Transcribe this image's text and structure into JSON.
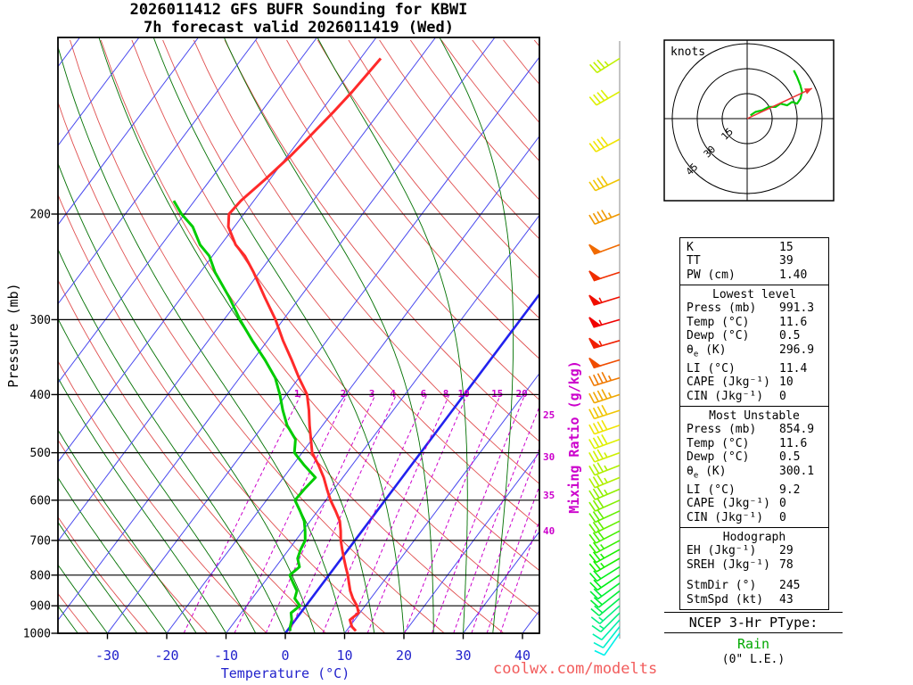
{
  "title": {
    "line1": "2026011412 GFS BUFR Sounding for KBWI",
    "line2": "7h forecast valid 2026011419 (Wed)"
  },
  "watermark": "coolwx.com/modelts",
  "skewt": {
    "xlabel": "Temperature (°C)",
    "ylabel": "Pressure (mb)",
    "mixing_label": "Mixing Ratio (g/kg)",
    "pressure_ticks": [
      200,
      300,
      400,
      500,
      600,
      700,
      800,
      900,
      1000
    ],
    "temp_ticks": [
      -30,
      -20,
      -10,
      0,
      10,
      20,
      30,
      40
    ],
    "mixing_ratios_top": [
      1,
      2,
      3,
      4,
      6,
      8,
      10,
      15,
      20
    ],
    "mixing_ratios_right": [
      25,
      30,
      35,
      40
    ],
    "colors": {
      "isotherm": "#4848ee",
      "isotherm_zero": "#2222ee",
      "dry_adiabat": "#e05050",
      "moist_adiabat": "#007000",
      "mixing": "#cc00cc",
      "temp_curve": "#ff2a2a",
      "dew_curve": "#00cc00",
      "axis_blue": "#2222cc",
      "grid": "#000000"
    }
  },
  "hodograph": {
    "unit_label": "knots",
    "rings_kt": [
      15,
      30,
      45
    ],
    "trace_uv_kt": [
      [
        2,
        2
      ],
      [
        5,
        4
      ],
      [
        9,
        5
      ],
      [
        13,
        7
      ],
      [
        17,
        7
      ],
      [
        20,
        9
      ],
      [
        24,
        8
      ],
      [
        27,
        10
      ],
      [
        30,
        9
      ],
      [
        32,
        12
      ],
      [
        33,
        16
      ],
      [
        32,
        20
      ],
      [
        30,
        25
      ],
      [
        28,
        29
      ]
    ],
    "storm_motion": {
      "dir_deg": 245,
      "spd_kt": 43
    },
    "trace_color": "#00cc00",
    "storm_color": "#ee3333"
  },
  "stats": {
    "summary": [
      {
        "label": "K",
        "value": "15"
      },
      {
        "label": "TT",
        "value": "39"
      },
      {
        "label": "PW (cm)",
        "value": "1.40"
      }
    ],
    "sections": [
      {
        "title": "Lowest level",
        "rows": [
          [
            "Press (mb)",
            "991.3"
          ],
          [
            "Temp (°C)",
            "11.6"
          ],
          [
            "Dewp (°C)",
            "0.5"
          ],
          [
            "θe (K)",
            "296.9"
          ],
          [
            "LI (°C)",
            "11.4"
          ],
          [
            "CAPE (Jkg⁻¹)",
            "10"
          ],
          [
            "CIN (Jkg⁻¹)",
            "0"
          ]
        ]
      },
      {
        "title": "Most Unstable",
        "rows": [
          [
            "Press (mb)",
            "854.9"
          ],
          [
            "Temp (°C)",
            "11.6"
          ],
          [
            "Dewp (°C)",
            "0.5"
          ],
          [
            "θe (K)",
            "300.1"
          ],
          [
            "LI (°C)",
            "9.2"
          ],
          [
            "CAPE (Jkg⁻¹)",
            "0"
          ],
          [
            "CIN (Jkg⁻¹)",
            "0"
          ]
        ]
      },
      {
        "title": "Hodograph",
        "rows": [
          [
            "EH (Jkg⁻¹)",
            "29"
          ],
          [
            "SREH (Jkg⁻¹)",
            "78"
          ],
          [
            "",
            ""
          ],
          [
            "StmDir (°)",
            "245"
          ],
          [
            "StmSpd (kt)",
            "43"
          ]
        ]
      }
    ]
  },
  "ptype": {
    "heading": "NCEP 3-Hr PType:",
    "value": "Rain",
    "value_color": "#00a800",
    "note": "(0\" L.E.)"
  },
  "chart_data": {
    "type": "skewt-sounding",
    "model": "GFS BUFR",
    "station": "KBWI",
    "run": "2026011412",
    "valid": "2026011419 (Wed)",
    "forecast_hour": 7,
    "pressure_mb": [
      991,
      975,
      950,
      925,
      900,
      875,
      850,
      825,
      800,
      775,
      750,
      725,
      700,
      675,
      650,
      625,
      600,
      575,
      550,
      525,
      500,
      475,
      450,
      425,
      400,
      375,
      350,
      325,
      300,
      275,
      250,
      235,
      225,
      210,
      200,
      190,
      175,
      160,
      150,
      135,
      125,
      110
    ],
    "temperature_c": [
      11.6,
      10.4,
      9.2,
      9.8,
      8.6,
      7.0,
      5.6,
      4.4,
      3.2,
      1.8,
      0.4,
      -1.0,
      -2.4,
      -3.6,
      -5.0,
      -7.0,
      -9.2,
      -11.2,
      -13.2,
      -15.6,
      -18.3,
      -20.2,
      -22.2,
      -24.2,
      -26.5,
      -30.0,
      -33.5,
      -37.4,
      -41.3,
      -46.0,
      -51.0,
      -54.5,
      -57.5,
      -61.0,
      -62.5,
      -62.2,
      -60.8,
      -59.5,
      -58.8,
      -57.8,
      -57.2,
      -56.6
    ],
    "dewpoint_c": [
      0.5,
      0.0,
      -0.6,
      -1.6,
      -1.0,
      -2.8,
      -3.4,
      -5.0,
      -6.6,
      -6.0,
      -7.4,
      -8.0,
      -8.4,
      -9.6,
      -11.0,
      -13.0,
      -15.2,
      -15.0,
      -14.6,
      -18.0,
      -21.3,
      -22.8,
      -26.0,
      -28.6,
      -31.1,
      -34.0,
      -38.0,
      -42.6,
      -47.3,
      -52.0,
      -57.5,
      -60.5,
      -63.5,
      -67.0,
      -70.5,
      -73.5,
      null,
      null,
      null,
      null,
      null,
      null
    ],
    "wind": {
      "p": [
        1000,
        975,
        950,
        925,
        900,
        875,
        850,
        825,
        800,
        775,
        750,
        725,
        700,
        675,
        650,
        625,
        600,
        575,
        550,
        525,
        500,
        475,
        450,
        425,
        400,
        375,
        350,
        325,
        300,
        275,
        250,
        225,
        200,
        175,
        150,
        125,
        110
      ],
      "dir": [
        215,
        218,
        222,
        225,
        228,
        230,
        232,
        234,
        236,
        238,
        240,
        241,
        242,
        243,
        244,
        245,
        246,
        247,
        248,
        249,
        250,
        250,
        251,
        252,
        252,
        253,
        253,
        254,
        254,
        253,
        252,
        250,
        248,
        245,
        242,
        240,
        238
      ],
      "spd": [
        8,
        10,
        12,
        15,
        15,
        18,
        20,
        20,
        22,
        22,
        25,
        25,
        27,
        28,
        30,
        30,
        32,
        33,
        35,
        35,
        37,
        38,
        40,
        42,
        44,
        47,
        50,
        53,
        55,
        54,
        52,
        48,
        45,
        42,
        40,
        38,
        36
      ]
    }
  }
}
